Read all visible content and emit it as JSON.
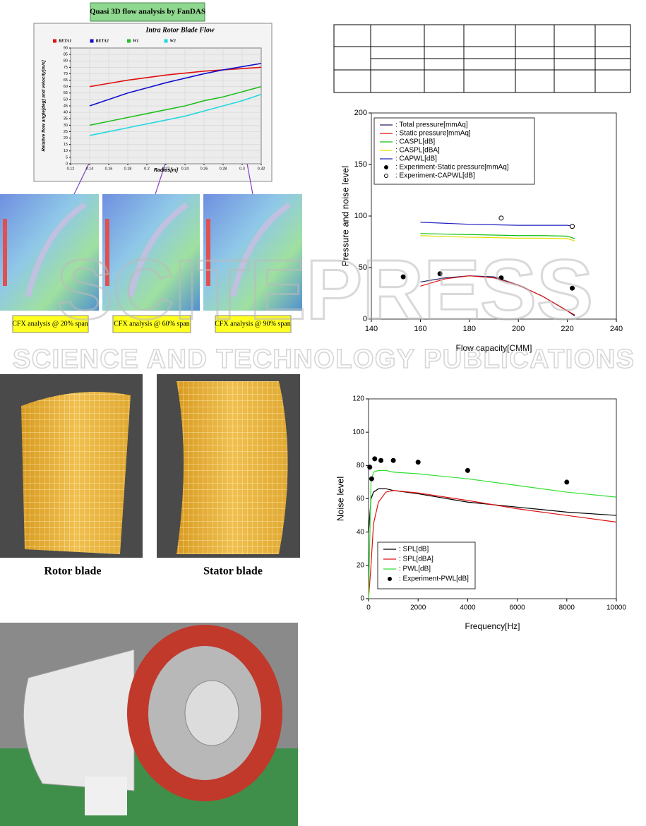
{
  "header_label": "Quasi 3D flow analysis by FanDAS",
  "cfx_captions": [
    "CFX analysis @ 20% span",
    "CFX analysis @ 60% span",
    "CFX analysis @ 90% span"
  ],
  "blade_labels": [
    "Rotor blade",
    "Stator blade"
  ],
  "watermark": {
    "brand": "SCITEPRESS",
    "tagline": "SCIENCE AND TECHNOLOGY PUBLICATIONS"
  },
  "chart_data": [
    {
      "type": "line",
      "title": "Intra Rotor Blade Flow",
      "x_label": "Radius[m]",
      "y_label": "Relative flow angle[deg] and velocity[m/s]",
      "legend": "top",
      "grid": true,
      "x": [
        0.14,
        0.16,
        0.18,
        0.2,
        0.22,
        0.24,
        0.26,
        0.28,
        0.3,
        0.32
      ],
      "series": [
        {
          "name": "BETA1",
          "color": "#e01010",
          "values": [
            60,
            62.5,
            65,
            67,
            69,
            70.5,
            72,
            73,
            74,
            75
          ]
        },
        {
          "name": "BETA2",
          "color": "#1010d0",
          "values": [
            45,
            50,
            55,
            59,
            63,
            66.5,
            70,
            73,
            75.5,
            78
          ]
        },
        {
          "name": "W1",
          "color": "#20c020",
          "values": [
            30,
            33,
            36,
            39,
            42,
            45,
            49,
            52,
            56,
            60
          ]
        },
        {
          "name": "W2",
          "color": "#20d8e0",
          "values": [
            22,
            25,
            28,
            31,
            34,
            37,
            41,
            45,
            49,
            54
          ]
        }
      ],
      "xlim": [
        0.12,
        0.32
      ],
      "xticks": [
        0.12,
        0.14,
        0.16,
        0.18,
        0.2,
        0.22,
        0.24,
        0.26,
        0.28,
        0.3,
        0.32
      ],
      "ylim": [
        0,
        90
      ],
      "yticks": [
        0,
        5,
        10,
        15,
        20,
        25,
        30,
        35,
        40,
        45,
        50,
        55,
        60,
        65,
        70,
        75,
        80,
        85,
        90
      ]
    },
    {
      "type": "line",
      "x_label": "Flow capacity[CMM]",
      "y_label": "Pressure and noise level",
      "legend": "upper left",
      "grid": false,
      "series": [
        {
          "name": ": Total pressure[mmAq]",
          "color": "#202060",
          "x": [
            160,
            170,
            180,
            190,
            200,
            210,
            220,
            223
          ],
          "values": [
            36,
            40,
            42,
            41,
            33,
            22,
            8,
            3
          ]
        },
        {
          "name": ": Static pressure[mmAq]",
          "color": "#e01010",
          "x": [
            160,
            170,
            180,
            190,
            200,
            210,
            220,
            223
          ],
          "values": [
            32,
            39,
            42,
            40,
            33,
            22,
            8,
            4
          ]
        },
        {
          "name": ": CASPL[dB]",
          "color": "#10c010",
          "x": [
            160,
            170,
            180,
            190,
            200,
            210,
            220,
            223
          ],
          "values": [
            83,
            82.5,
            82,
            81.5,
            81,
            81,
            80.5,
            78
          ]
        },
        {
          "name": ": CASPL[dBA]",
          "color": "#e0e000",
          "x": [
            160,
            170,
            180,
            190,
            200,
            210,
            220,
            223
          ],
          "values": [
            81,
            80,
            79.5,
            79,
            78.5,
            78.5,
            78,
            76
          ]
        },
        {
          "name": ": CAPWL[dB]",
          "color": "#2020c0",
          "x": [
            160,
            170,
            180,
            190,
            200,
            210,
            220,
            223
          ],
          "values": [
            94,
            93,
            92,
            91.5,
            91,
            91,
            91,
            90
          ]
        },
        {
          "name": ": Experiment-Static pressure[mmAq]",
          "color": "#000000",
          "marker": "filled",
          "x": [
            153,
            168,
            193,
            222
          ],
          "values": [
            41,
            44,
            40,
            30
          ]
        },
        {
          "name": ": Experiment-CAPWL[dB]",
          "color": "#000000",
          "marker": "open",
          "x": [
            193,
            222
          ],
          "values": [
            98,
            90
          ]
        }
      ],
      "xlim": [
        140,
        240
      ],
      "xticks": [
        140,
        160,
        180,
        200,
        220,
        240
      ],
      "ylim": [
        0,
        200
      ],
      "yticks": [
        0,
        50,
        100,
        150,
        200
      ]
    },
    {
      "type": "line",
      "x_label": "Frequency[Hz]",
      "y_label": "Noise level",
      "legend": "lower left",
      "grid": false,
      "series": [
        {
          "name": ": SPL[dB]",
          "color": "#000000",
          "x": [
            0,
            100,
            200,
            400,
            700,
            1000,
            2000,
            4000,
            6000,
            8000,
            10000
          ],
          "values": [
            40,
            60,
            64,
            66,
            66,
            65,
            63,
            58,
            55,
            52,
            50
          ]
        },
        {
          "name": ": SPL[dBA]",
          "color": "#e01010",
          "x": [
            0,
            100,
            200,
            400,
            700,
            1000,
            2000,
            4000,
            6000,
            8000,
            10000
          ],
          "values": [
            0,
            20,
            45,
            58,
            64,
            65,
            63.5,
            59,
            54,
            50,
            46
          ]
        },
        {
          "name": ": PWL[dB]",
          "color": "#30e030",
          "x": [
            0,
            100,
            200,
            400,
            700,
            1000,
            2000,
            4000,
            6000,
            8000,
            10000
          ],
          "values": [
            0,
            70,
            76,
            77,
            77,
            76,
            75,
            72,
            68,
            64,
            61
          ]
        },
        {
          "name": ": Experiment-PWL[dB]",
          "color": "#000000",
          "marker": "filled",
          "x": [
            50,
            125,
            250,
            500,
            1000,
            2000,
            4000,
            8000
          ],
          "values": [
            79,
            72,
            84,
            83,
            83,
            82,
            77,
            70
          ]
        }
      ],
      "xlim": [
        0,
        10000
      ],
      "xticks": [
        0,
        2000,
        4000,
        6000,
        8000,
        10000
      ],
      "ylim": [
        0,
        120
      ],
      "yticks": [
        0,
        20,
        40,
        60,
        80,
        100,
        120
      ]
    }
  ]
}
